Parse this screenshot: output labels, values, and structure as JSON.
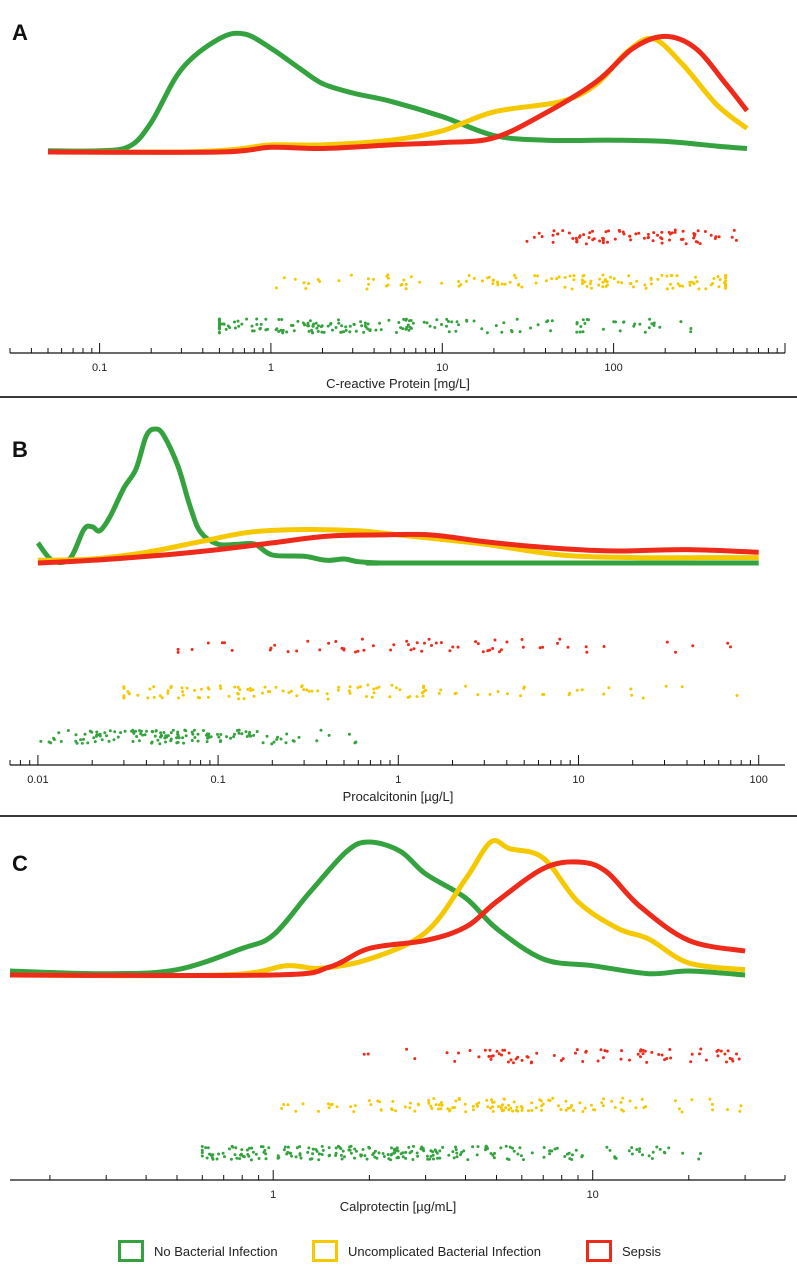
{
  "chart_data": [
    {
      "type": "density",
      "panel_label": "A",
      "xlabel": "C-reactive Protein [mg/L]",
      "xscale": "log",
      "xlim": [
        0.03,
        1000
      ],
      "tick_labels": [
        {
          "v": 0.1,
          "label": "0.1"
        },
        {
          "v": 1,
          "label": "1"
        },
        {
          "v": 10,
          "label": "10"
        },
        {
          "v": 100,
          "label": "100"
        }
      ],
      "series": [
        {
          "name": "No Bacterial Infection",
          "color": "#34a33f",
          "density": [
            [
              0.05,
              0.01
            ],
            [
              0.1,
              0.01
            ],
            [
              0.15,
              0.05
            ],
            [
              0.2,
              0.25
            ],
            [
              0.3,
              0.7
            ],
            [
              0.5,
              0.96
            ],
            [
              0.7,
              1.0
            ],
            [
              1.0,
              0.88
            ],
            [
              1.5,
              0.7
            ],
            [
              2,
              0.58
            ],
            [
              3,
              0.5
            ],
            [
              5,
              0.43
            ],
            [
              10,
              0.3
            ],
            [
              20,
              0.14
            ],
            [
              40,
              0.1
            ],
            [
              100,
              0.1
            ],
            [
              200,
              0.09
            ],
            [
              400,
              0.05
            ],
            [
              600,
              0.03
            ]
          ],
          "points_seed": 11,
          "points_count": 190,
          "points_range": [
            0.5,
            300
          ],
          "points_mode": 1.5
        },
        {
          "name": "Uncomplicated Bacterial Infection",
          "color": "#f5c800",
          "density": [
            [
              0.05,
              0.0
            ],
            [
              0.3,
              0.0
            ],
            [
              0.6,
              0.02
            ],
            [
              1,
              0.06
            ],
            [
              2,
              0.06
            ],
            [
              5,
              0.1
            ],
            [
              10,
              0.18
            ],
            [
              20,
              0.34
            ],
            [
              50,
              0.43
            ],
            [
              80,
              0.58
            ],
            [
              120,
              0.85
            ],
            [
              170,
              0.96
            ],
            [
              250,
              0.75
            ],
            [
              400,
              0.4
            ],
            [
              600,
              0.2
            ]
          ],
          "points_seed": 23,
          "points_count": 135,
          "points_range": [
            1,
            450
          ],
          "points_mode": 120
        },
        {
          "name": "Sepsis",
          "color": "#ee2a1a",
          "density": [
            [
              0.05,
              0.0
            ],
            [
              0.5,
              0.0
            ],
            [
              1,
              0.04
            ],
            [
              2,
              0.03
            ],
            [
              5,
              0.06
            ],
            [
              10,
              0.08
            ],
            [
              20,
              0.12
            ],
            [
              40,
              0.33
            ],
            [
              80,
              0.6
            ],
            [
              130,
              0.88
            ],
            [
              200,
              0.98
            ],
            [
              300,
              0.88
            ],
            [
              450,
              0.58
            ],
            [
              600,
              0.35
            ]
          ],
          "points_seed": 37,
          "points_count": 80,
          "points_range": [
            30,
            600
          ],
          "points_mode": 150
        }
      ]
    },
    {
      "type": "density",
      "panel_label": "B",
      "xlabel": "Procalcitonin [µg/L]",
      "xscale": "log",
      "xlim": [
        0.007,
        140
      ],
      "tick_labels": [
        {
          "v": 0.01,
          "label": "0.01"
        },
        {
          "v": 0.1,
          "label": "0.1"
        },
        {
          "v": 1,
          "label": "1"
        },
        {
          "v": 10,
          "label": "10"
        },
        {
          "v": 100,
          "label": "100"
        }
      ],
      "series": [
        {
          "name": "No Bacterial Infection",
          "color": "#34a33f",
          "density": [
            [
              0.01,
              0.15
            ],
            [
              0.012,
              0.02
            ],
            [
              0.015,
              0.03
            ],
            [
              0.018,
              0.25
            ],
            [
              0.02,
              0.27
            ],
            [
              0.022,
              0.24
            ],
            [
              0.025,
              0.34
            ],
            [
              0.03,
              0.56
            ],
            [
              0.035,
              0.7
            ],
            [
              0.04,
              0.95
            ],
            [
              0.045,
              1.0
            ],
            [
              0.05,
              0.95
            ],
            [
              0.06,
              0.72
            ],
            [
              0.07,
              0.42
            ],
            [
              0.08,
              0.23
            ],
            [
              0.1,
              0.14
            ],
            [
              0.13,
              0.14
            ],
            [
              0.16,
              0.14
            ],
            [
              0.2,
              0.06
            ],
            [
              0.3,
              0.05
            ],
            [
              0.4,
              0.02
            ],
            [
              0.5,
              0.03
            ],
            [
              0.6,
              0.01
            ],
            [
              0.8,
              0.0
            ],
            [
              1,
              0.0
            ],
            [
              100,
              0.0
            ]
          ],
          "points_seed": 51,
          "points_count": 140,
          "points_range": [
            0.01,
            0.6
          ],
          "points_mode": 0.05
        },
        {
          "name": "Uncomplicated Bacterial Infection",
          "color": "#f5c800",
          "density": [
            [
              0.01,
              0.02
            ],
            [
              0.02,
              0.03
            ],
            [
              0.04,
              0.08
            ],
            [
              0.08,
              0.16
            ],
            [
              0.15,
              0.23
            ],
            [
              0.3,
              0.25
            ],
            [
              0.6,
              0.24
            ],
            [
              1,
              0.21
            ],
            [
              3,
              0.14
            ],
            [
              8,
              0.06
            ],
            [
              20,
              0.04
            ],
            [
              50,
              0.04
            ],
            [
              100,
              0.04
            ]
          ],
          "points_seed": 63,
          "points_count": 120,
          "points_range": [
            0.03,
            100
          ],
          "points_mode": 0.3
        },
        {
          "name": "Sepsis",
          "color": "#ee2a1a",
          "density": [
            [
              0.01,
              0.0
            ],
            [
              0.02,
              0.02
            ],
            [
              0.05,
              0.06
            ],
            [
              0.1,
              0.1
            ],
            [
              0.2,
              0.15
            ],
            [
              0.4,
              0.2
            ],
            [
              0.8,
              0.21
            ],
            [
              1.5,
              0.21
            ],
            [
              3,
              0.16
            ],
            [
              6,
              0.12
            ],
            [
              15,
              0.09
            ],
            [
              40,
              0.1
            ],
            [
              100,
              0.08
            ]
          ],
          "points_seed": 77,
          "points_count": 65,
          "points_range": [
            0.06,
            100
          ],
          "points_mode": 1
        }
      ]
    },
    {
      "type": "density",
      "panel_label": "C",
      "xlabel": "Calprotectin [µg/mL]",
      "xscale": "log",
      "xlim": [
        0.15,
        40
      ],
      "tick_labels": [
        {
          "v": 1,
          "label": "1"
        },
        {
          "v": 10,
          "label": "10"
        }
      ],
      "series": [
        {
          "name": "No Bacterial Infection",
          "color": "#34a33f",
          "density": [
            [
              0.15,
              0.03
            ],
            [
              0.3,
              0.01
            ],
            [
              0.5,
              0.04
            ],
            [
              0.8,
              0.2
            ],
            [
              1,
              0.3
            ],
            [
              1.3,
              0.62
            ],
            [
              1.7,
              0.93
            ],
            [
              2,
              1.0
            ],
            [
              2.5,
              0.93
            ],
            [
              3,
              0.76
            ],
            [
              4,
              0.58
            ],
            [
              5,
              0.35
            ],
            [
              7,
              0.12
            ],
            [
              10,
              0.07
            ],
            [
              15,
              0.01
            ],
            [
              20,
              0.03
            ],
            [
              30,
              0.0
            ]
          ],
          "points_seed": 91,
          "points_count": 240,
          "points_range": [
            0.6,
            22
          ],
          "points_mode": 2
        },
        {
          "name": "Uncomplicated Bacterial Infection",
          "color": "#f5c800",
          "density": [
            [
              0.15,
              0.0
            ],
            [
              0.7,
              0.0
            ],
            [
              1.1,
              0.07
            ],
            [
              1.4,
              0.05
            ],
            [
              2,
              0.12
            ],
            [
              3,
              0.32
            ],
            [
              4,
              0.72
            ],
            [
              4.8,
              1.0
            ],
            [
              5.5,
              0.95
            ],
            [
              7,
              0.88
            ],
            [
              9,
              0.55
            ],
            [
              12,
              0.35
            ],
            [
              15,
              0.27
            ],
            [
              20,
              0.09
            ],
            [
              30,
              0.04
            ]
          ],
          "points_seed": 103,
          "points_count": 135,
          "points_range": [
            1,
            30
          ],
          "points_mode": 5
        },
        {
          "name": "Sepsis",
          "color": "#ee2a1a",
          "density": [
            [
              0.15,
              0.0
            ],
            [
              1,
              0.0
            ],
            [
              1.5,
              0.06
            ],
            [
              2,
              0.2
            ],
            [
              3,
              0.26
            ],
            [
              4,
              0.36
            ],
            [
              5,
              0.55
            ],
            [
              7,
              0.8
            ],
            [
              9,
              0.85
            ],
            [
              11,
              0.78
            ],
            [
              14,
              0.52
            ],
            [
              20,
              0.26
            ],
            [
              30,
              0.18
            ]
          ],
          "points_seed": 117,
          "points_count": 80,
          "points_range": [
            1.8,
            30
          ],
          "points_mode": 8
        }
      ]
    }
  ],
  "legend": {
    "items": [
      {
        "label": "No Bacterial Infection",
        "color": "#34a33f"
      },
      {
        "label": "Uncomplicated Bacterial Infection",
        "color": "#f5c800"
      },
      {
        "label": "Sepsis",
        "color": "#ee2a1a"
      }
    ]
  }
}
